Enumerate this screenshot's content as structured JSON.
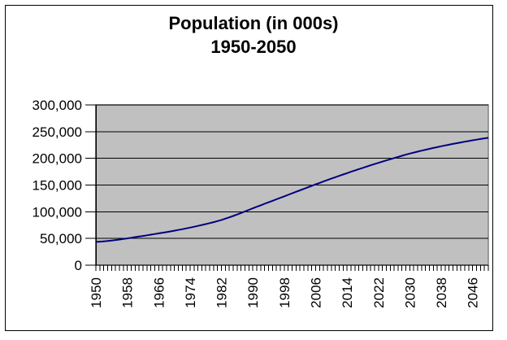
{
  "window": {
    "background": "#ffffff",
    "frame_border_color": "#000000"
  },
  "chart_data": {
    "type": "line",
    "title": "Population (in 000s)",
    "subtitle": "1950-2050",
    "xlabel": "",
    "ylabel": "",
    "legend": "none",
    "grid": "horizontal",
    "ylim": [
      0,
      300000
    ],
    "year_start": 1950,
    "year_end": 2050,
    "year_step": 1,
    "y_ticks": [
      {
        "value": 0,
        "label": "0"
      },
      {
        "value": 50000,
        "label": "50,000"
      },
      {
        "value": 100000,
        "label": "100,000"
      },
      {
        "value": 150000,
        "label": "150,000"
      },
      {
        "value": 200000,
        "label": "200,000"
      },
      {
        "value": 250000,
        "label": "250,000"
      },
      {
        "value": 300000,
        "label": "300,000"
      }
    ],
    "x_tick_labels": [
      "1950",
      "1958",
      "1966",
      "1974",
      "1982",
      "1990",
      "1998",
      "2006",
      "2014",
      "2022",
      "2030",
      "2038",
      "2046"
    ],
    "colors": {
      "line": "#000080",
      "plot_background": "#c0c0c0",
      "gridline": "#000000",
      "plot_border": "#808080",
      "axis": "#000000",
      "text": "#000000"
    },
    "series": [
      {
        "name": "Population",
        "color": "#000080",
        "values": [
          43500,
          44000,
          44600,
          45300,
          46100,
          47000,
          48000,
          49000,
          50100,
          51300,
          52500,
          53600,
          54700,
          55900,
          57100,
          58300,
          59500,
          60700,
          61900,
          63200,
          64500,
          65900,
          67300,
          68800,
          70300,
          71900,
          73500,
          75200,
          76900,
          78700,
          80500,
          82500,
          84700,
          87100,
          89600,
          92200,
          94900,
          97700,
          100600,
          103500,
          106500,
          109300,
          112100,
          114900,
          117700,
          120500,
          123300,
          126100,
          128900,
          131700,
          134500,
          137300,
          140100,
          142900,
          145700,
          148500,
          151300,
          154000,
          156700,
          159400,
          162000,
          164600,
          167200,
          169800,
          172300,
          174800,
          177300,
          179800,
          182200,
          184600,
          187000,
          189300,
          191600,
          193900,
          196100,
          198300,
          200500,
          202700,
          204800,
          206900,
          209000,
          210800,
          212600,
          214400,
          216100,
          217800,
          219400,
          221000,
          222600,
          224100,
          225500,
          227000,
          228400,
          229800,
          231100,
          232400,
          233700,
          235000,
          236200,
          237400,
          238500
        ]
      }
    ]
  }
}
